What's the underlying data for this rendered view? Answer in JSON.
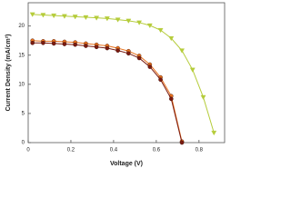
{
  "chart_data": {
    "type": "line",
    "xlabel": "Voltage (V)",
    "ylabel": "Current Density (mA/cm²)",
    "x": [
      0.02,
      0.07,
      0.12,
      0.17,
      0.22,
      0.27,
      0.32,
      0.37,
      0.42,
      0.47,
      0.52,
      0.57,
      0.62,
      0.67,
      0.72,
      0.77,
      0.82,
      0.87
    ],
    "series": [
      {
        "color": "#b5cc3a",
        "marker": "triangle-down",
        "values": [
          22.0,
          21.9,
          21.8,
          21.7,
          21.6,
          21.5,
          21.4,
          21.3,
          21.1,
          20.9,
          20.6,
          20.1,
          19.3,
          17.9,
          15.8,
          12.5,
          7.8,
          1.7
        ]
      },
      {
        "color": "#e8731e",
        "marker": "circle",
        "values": [
          17.5,
          17.4,
          17.4,
          17.3,
          17.2,
          17.0,
          16.8,
          16.6,
          16.2,
          15.7,
          14.9,
          13.4,
          11.2,
          8.0,
          0.2,
          null,
          null,
          null
        ]
      },
      {
        "color": "#7a1a10",
        "marker": "circle",
        "values": [
          17.1,
          17.1,
          17.0,
          16.9,
          16.8,
          16.6,
          16.4,
          16.2,
          15.8,
          15.3,
          14.5,
          13.0,
          10.8,
          7.5,
          0.0,
          null,
          null,
          null
        ]
      }
    ],
    "xlim": [
      0,
      0.92
    ],
    "ylim": [
      0,
      24
    ],
    "xticks": [
      0,
      0.2,
      0.4,
      0.6,
      0.8
    ],
    "yticks": [
      0,
      5,
      10,
      15,
      20
    ]
  }
}
